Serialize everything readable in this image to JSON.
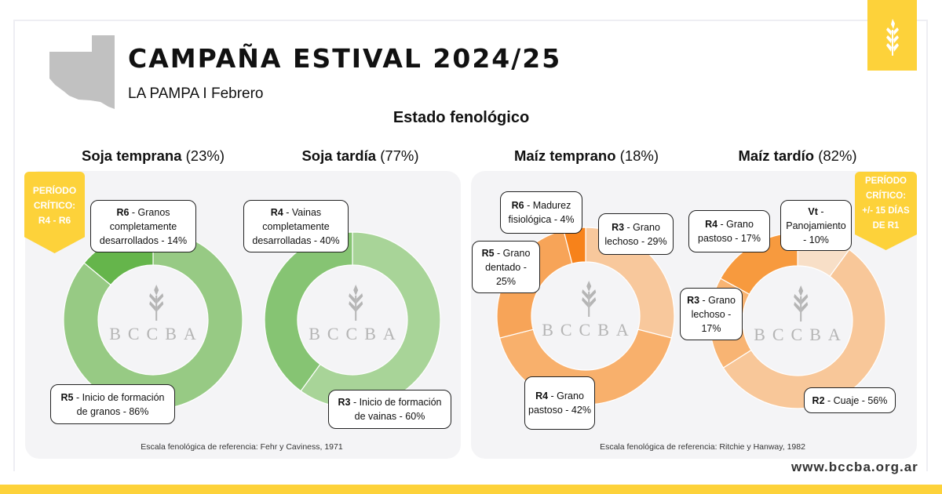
{
  "header": {
    "title": "CAMPAÑA ESTIVAL 2024/25",
    "subtitle": "LA PAMPA I Febrero",
    "section_title": "Estado fenológico",
    "brand_color": "#fdd23a",
    "logo_icon": "wheat-icon",
    "website": "www.bccba.org.ar",
    "watermark": "BCCBA"
  },
  "panels": {
    "soja": {
      "reference": "Escala fenológica de referencia: Fehr y Caviness, 1971",
      "critical": [
        "PERÍODO",
        "CRÍTICO:",
        "R4 - R6"
      ]
    },
    "maiz": {
      "reference": "Escala fenológica de referencia: Ritchie y Hanway, 1982",
      "critical": [
        "PERÍODO",
        "CRÍTICO:",
        "+/- 15 DÍAS",
        "DE R1"
      ]
    }
  },
  "chart_data": [
    {
      "type": "pie",
      "title": "Soja temprana",
      "title_share": "(23%)",
      "slices": [
        {
          "stage": "R5",
          "label": "Inicio de formación de granos",
          "value": 86,
          "color": "#97ca84"
        },
        {
          "stage": "R6",
          "label": "Granos completamente desarrollados",
          "value": 14,
          "color": "#65b54b"
        }
      ]
    },
    {
      "type": "pie",
      "title": "Soja tardía",
      "title_share": "(77%)",
      "slices": [
        {
          "stage": "R3",
          "label": "Inicio de formación de vainas",
          "value": 60,
          "color": "#a8d498"
        },
        {
          "stage": "R4",
          "label": "Vainas completamente desarrolladas",
          "value": 40,
          "color": "#86c473"
        }
      ]
    },
    {
      "type": "pie",
      "title": "Maíz temprano",
      "title_share": "(18%)",
      "slices": [
        {
          "stage": "R3",
          "label": "Grano lechoso",
          "value": 29,
          "color": "#f8c89c"
        },
        {
          "stage": "R4",
          "label": "Grano pastoso",
          "value": 42,
          "color": "#f8b06c"
        },
        {
          "stage": "R5",
          "label": "Grano dentado",
          "value": 25,
          "color": "#f7a458"
        },
        {
          "stage": "R6",
          "label": "Madurez fisiológica",
          "value": 4,
          "color": "#f7821a"
        }
      ]
    },
    {
      "type": "pie",
      "title": "Maíz tardío",
      "title_share": "(82%)",
      "slices": [
        {
          "stage": "Vt",
          "label": "Panojamiento",
          "value": 10,
          "color": "#f8dfc7"
        },
        {
          "stage": "R2",
          "label": "Cuaje",
          "value": 56,
          "color": "#f8c799"
        },
        {
          "stage": "R3",
          "label": "Grano lechoso",
          "value": 17,
          "color": "#f8b473"
        },
        {
          "stage": "R4",
          "label": "Grano pastoso",
          "value": 17,
          "color": "#f79a3e"
        }
      ]
    }
  ]
}
